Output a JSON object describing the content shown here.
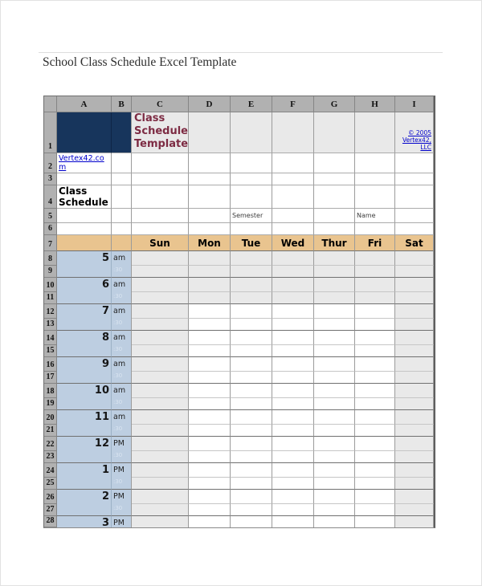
{
  "page": {
    "title": "School Class Schedule Excel Template"
  },
  "sheet": {
    "column_headers": [
      "A",
      "B",
      "C",
      "D",
      "E",
      "F",
      "G",
      "H",
      "I"
    ],
    "row_count": 28,
    "cells": {
      "c1_title": "Class Schedule Template",
      "i1_copyright": "© 2005 Vertex42, LLC",
      "a2_link": "Vertex42.com",
      "a4_heading": "Class Schedule",
      "e5_label": "Semester",
      "h5_label": "Name"
    },
    "day_headers": [
      "Sun",
      "Mon",
      "Tue",
      "Wed",
      "Thur",
      "Fri",
      "Sat"
    ],
    "time_slots": [
      {
        "hour": "5",
        "meridiem": "am"
      },
      {
        "hour": "6",
        "meridiem": "am"
      },
      {
        "hour": "7",
        "meridiem": "am"
      },
      {
        "hour": "8",
        "meridiem": "am"
      },
      {
        "hour": "9",
        "meridiem": "am"
      },
      {
        "hour": "10",
        "meridiem": "am"
      },
      {
        "hour": "11",
        "meridiem": "am"
      },
      {
        "hour": "12",
        "meridiem": "PM"
      },
      {
        "hour": "1",
        "meridiem": "PM"
      },
      {
        "hour": "2",
        "meridiem": "PM"
      },
      {
        "hour": "3",
        "meridiem": "PM"
      }
    ],
    "half_hour_label": ":30"
  },
  "colors": {
    "navy": "#17355c",
    "navy_divider": "#0f2646",
    "maroon": "#7d2b43",
    "tan": "#e9c48f",
    "time_blue": "#bdcee1",
    "time_blue_divider": "#9db1c6",
    "shaded_cell": "#e9e9e9",
    "header_gray": "#b1b1b1",
    "link_blue": "#0000cc",
    "hour_line_dark": "#707070",
    "half_line_light": "#c6c6c6"
  }
}
